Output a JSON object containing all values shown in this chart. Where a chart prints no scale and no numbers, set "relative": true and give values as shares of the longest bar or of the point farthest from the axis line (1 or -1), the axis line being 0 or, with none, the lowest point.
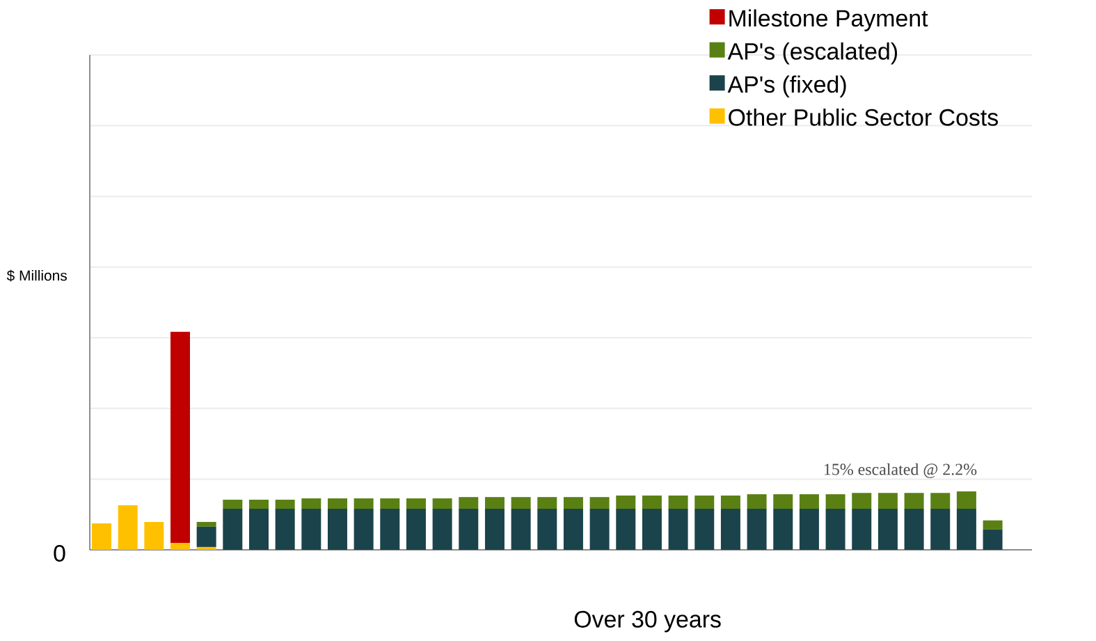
{
  "chart_data": {
    "type": "bar",
    "stacked": true,
    "relative": true,
    "xlabel": "Over 30 years",
    "ylabel": "$ Millions",
    "annotations": [
      "0",
      "15% escalated @ 2.2%"
    ],
    "grid": "y",
    "legend": "top right",
    "categories": [
      null,
      null,
      null,
      null,
      null,
      null,
      null,
      null,
      null,
      null,
      null,
      null,
      null,
      null,
      null,
      null,
      null,
      null,
      null,
      null,
      null,
      null,
      null,
      null,
      null,
      null,
      null,
      null,
      null,
      null,
      null,
      null,
      null,
      null,
      null
    ],
    "series": [
      {
        "name": "Other Public Sector Costs",
        "color": "#ffc000",
        "values": [
          0.121,
          0.204,
          0.128,
          0.032,
          0.013,
          0,
          0,
          0,
          0,
          0,
          0,
          0,
          0,
          0,
          0,
          0,
          0,
          0,
          0,
          0,
          0,
          0,
          0,
          0,
          0,
          0,
          0,
          0,
          0,
          0,
          0,
          0,
          0,
          0,
          0
        ]
      },
      {
        "name": "AP's (fixed)",
        "color": "#1b434c",
        "values": [
          0,
          0,
          0,
          0,
          0.093,
          0.188,
          0.188,
          0.188,
          0.188,
          0.188,
          0.188,
          0.188,
          0.188,
          0.188,
          0.188,
          0.188,
          0.188,
          0.188,
          0.188,
          0.188,
          0.188,
          0.188,
          0.188,
          0.188,
          0.188,
          0.188,
          0.188,
          0.188,
          0.188,
          0.188,
          0.188,
          0.188,
          0.188,
          0.188,
          0.093
        ]
      },
      {
        "name": "AP's (escalated)",
        "color": "#5a8014",
        "values": [
          0,
          0,
          0,
          0,
          0.022,
          0.042,
          0.042,
          0.042,
          0.048,
          0.048,
          0.048,
          0.048,
          0.048,
          0.048,
          0.054,
          0.054,
          0.054,
          0.054,
          0.054,
          0.054,
          0.061,
          0.061,
          0.061,
          0.061,
          0.061,
          0.067,
          0.067,
          0.067,
          0.067,
          0.073,
          0.073,
          0.073,
          0.073,
          0.08,
          0.042
        ]
      },
      {
        "name": "Milestone Payment",
        "color": "#c00000",
        "values": [
          0,
          0,
          0,
          0.968,
          0,
          0,
          0,
          0,
          0,
          0,
          0,
          0,
          0,
          0,
          0,
          0,
          0,
          0,
          0,
          0,
          0,
          0,
          0,
          0,
          0,
          0,
          0,
          0,
          0,
          0,
          0,
          0,
          0,
          0,
          0
        ]
      }
    ]
  }
}
